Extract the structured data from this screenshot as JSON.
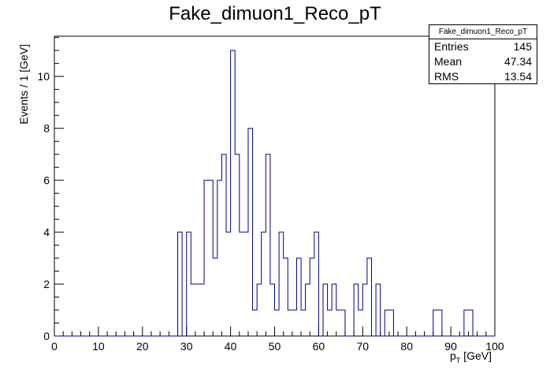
{
  "chart_data": {
    "type": "histogram",
    "title": "Fake_dimuon1_Reco_pT",
    "xlabel": "p",
    "xlabel_sub": "T",
    "xlabel_unit": " [GeV]",
    "ylabel": "Events / 1 [GeV]",
    "xlim": [
      0,
      100
    ],
    "ylim": [
      0,
      11.55
    ],
    "bin_width": 1,
    "x_ticks": [
      0,
      10,
      20,
      30,
      40,
      50,
      60,
      70,
      80,
      90,
      100
    ],
    "y_ticks": [
      0,
      2,
      4,
      6,
      8,
      10
    ],
    "line_color": "#000080",
    "bins": [
      {
        "x": 28,
        "y": 4
      },
      {
        "x": 29,
        "y": 0
      },
      {
        "x": 30,
        "y": 4
      },
      {
        "x": 31,
        "y": 2
      },
      {
        "x": 32,
        "y": 2
      },
      {
        "x": 33,
        "y": 2
      },
      {
        "x": 34,
        "y": 6
      },
      {
        "x": 35,
        "y": 6
      },
      {
        "x": 36,
        "y": 3
      },
      {
        "x": 37,
        "y": 6
      },
      {
        "x": 38,
        "y": 7
      },
      {
        "x": 39,
        "y": 4
      },
      {
        "x": 40,
        "y": 11
      },
      {
        "x": 41,
        "y": 7
      },
      {
        "x": 42,
        "y": 4
      },
      {
        "x": 43,
        "y": 4
      },
      {
        "x": 44,
        "y": 8
      },
      {
        "x": 45,
        "y": 1
      },
      {
        "x": 46,
        "y": 2
      },
      {
        "x": 47,
        "y": 4
      },
      {
        "x": 48,
        "y": 7
      },
      {
        "x": 49,
        "y": 2
      },
      {
        "x": 50,
        "y": 1
      },
      {
        "x": 51,
        "y": 4
      },
      {
        "x": 52,
        "y": 3
      },
      {
        "x": 53,
        "y": 1
      },
      {
        "x": 54,
        "y": 1
      },
      {
        "x": 55,
        "y": 3
      },
      {
        "x": 56,
        "y": 1
      },
      {
        "x": 57,
        "y": 2
      },
      {
        "x": 58,
        "y": 3
      },
      {
        "x": 59,
        "y": 4
      },
      {
        "x": 60,
        "y": 0
      },
      {
        "x": 61,
        "y": 2
      },
      {
        "x": 62,
        "y": 1
      },
      {
        "x": 63,
        "y": 2
      },
      {
        "x": 64,
        "y": 1
      },
      {
        "x": 65,
        "y": 1
      },
      {
        "x": 66,
        "y": 0
      },
      {
        "x": 67,
        "y": 0
      },
      {
        "x": 68,
        "y": 2
      },
      {
        "x": 69,
        "y": 1
      },
      {
        "x": 70,
        "y": 2
      },
      {
        "x": 71,
        "y": 3
      },
      {
        "x": 72,
        "y": 0
      },
      {
        "x": 73,
        "y": 2
      },
      {
        "x": 74,
        "y": 0
      },
      {
        "x": 75,
        "y": 1
      },
      {
        "x": 76,
        "y": 1
      },
      {
        "x": 77,
        "y": 0
      },
      {
        "x": 78,
        "y": 0
      },
      {
        "x": 79,
        "y": 0
      },
      {
        "x": 80,
        "y": 0
      },
      {
        "x": 81,
        "y": 0
      },
      {
        "x": 82,
        "y": 0
      },
      {
        "x": 83,
        "y": 0
      },
      {
        "x": 84,
        "y": 0
      },
      {
        "x": 85,
        "y": 0
      },
      {
        "x": 86,
        "y": 1
      },
      {
        "x": 87,
        "y": 1
      },
      {
        "x": 88,
        "y": 0
      },
      {
        "x": 89,
        "y": 0
      },
      {
        "x": 90,
        "y": 0
      },
      {
        "x": 91,
        "y": 0
      },
      {
        "x": 92,
        "y": 0
      },
      {
        "x": 93,
        "y": 1
      },
      {
        "x": 94,
        "y": 1
      },
      {
        "x": 95,
        "y": 0
      }
    ],
    "stats": {
      "name": "Fake_dimuon1_Reco_pT",
      "entries_label": "Entries",
      "entries": "145",
      "mean_label": "Mean",
      "mean": "47.34",
      "rms_label": "RMS",
      "rms": "13.54"
    }
  }
}
